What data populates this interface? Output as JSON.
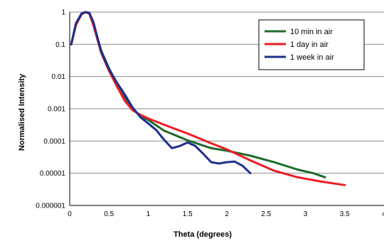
{
  "chart_data": {
    "type": "line",
    "title": "",
    "xlabel": "Theta (degrees)",
    "ylabel": "Normalised Intensity",
    "xlim": [
      0,
      4
    ],
    "ylim": [
      1e-06,
      1
    ],
    "y_scale": "log",
    "x_ticks": [
      "0",
      "0.5",
      "1",
      "1.5",
      "2",
      "2.5",
      "3",
      "3.5",
      "4"
    ],
    "y_ticks": [
      "1",
      "0.1",
      "0.01",
      "0.001",
      "0.0001",
      "0.00001",
      "0.000001"
    ],
    "grid": "horizontal",
    "legend_position": "top-right",
    "series": [
      {
        "name": "10 min in air",
        "color": "#1f6b2a",
        "x": [
          0.02,
          0.08,
          0.15,
          0.2,
          0.25,
          0.3,
          0.4,
          0.5,
          0.6,
          0.7,
          0.8,
          0.9,
          1.0,
          1.2,
          1.5,
          1.8,
          2.0,
          2.3,
          2.6,
          2.9,
          3.1,
          3.25
        ],
        "y": [
          0.1,
          0.4,
          0.85,
          1.0,
          0.9,
          0.45,
          0.065,
          0.018,
          0.006,
          0.0022,
          0.001,
          0.0006,
          0.00045,
          0.00021,
          0.000105,
          6e-05,
          5e-05,
          3.5e-05,
          2.2e-05,
          1.3e-05,
          1e-05,
          7.5e-06
        ]
      },
      {
        "name": "1 day in air",
        "color": "#ee1c25",
        "x": [
          0.02,
          0.08,
          0.15,
          0.2,
          0.25,
          0.3,
          0.4,
          0.5,
          0.6,
          0.7,
          0.8,
          0.9,
          1.0,
          1.2,
          1.5,
          1.8,
          2.0,
          2.3,
          2.6,
          2.9,
          3.2,
          3.5
        ],
        "y": [
          0.1,
          0.4,
          0.85,
          1.0,
          0.9,
          0.4,
          0.055,
          0.015,
          0.005,
          0.0018,
          0.0009,
          0.00065,
          0.0005,
          0.00032,
          0.00017,
          8.5e-05,
          5.5e-05,
          2.5e-05,
          1.2e-05,
          7.5e-06,
          5.5e-06,
          4.3e-06
        ]
      },
      {
        "name": "1 week in air",
        "color": "#1c2f8c",
        "x": [
          0.02,
          0.08,
          0.15,
          0.2,
          0.25,
          0.3,
          0.4,
          0.5,
          0.6,
          0.7,
          0.8,
          0.9,
          1.0,
          1.1,
          1.2,
          1.3,
          1.4,
          1.5,
          1.6,
          1.7,
          1.8,
          1.9,
          2.0,
          2.1,
          2.2,
          2.3
        ],
        "y": [
          0.1,
          0.45,
          0.9,
          1.0,
          0.95,
          0.5,
          0.06,
          0.017,
          0.0065,
          0.0028,
          0.0011,
          0.00055,
          0.00035,
          0.00022,
          0.00011,
          6e-05,
          7e-05,
          9e-05,
          7e-05,
          4e-05,
          2.2e-05,
          2e-05,
          2.2e-05,
          2.3e-05,
          1.7e-05,
          1e-05
        ]
      }
    ]
  }
}
